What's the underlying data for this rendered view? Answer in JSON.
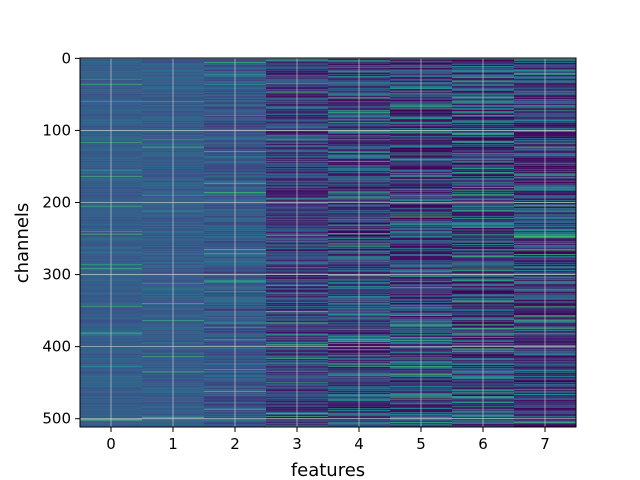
{
  "chart_data": {
    "type": "heatmap",
    "title": "",
    "xlabel": "features",
    "ylabel": "channels",
    "x_categories": [
      "0",
      "1",
      "2",
      "3",
      "4",
      "5",
      "6",
      "7"
    ],
    "y_ticks": [
      0,
      100,
      200,
      300,
      400,
      500
    ],
    "y_tick_labels": [
      "0",
      "100",
      "200",
      "300",
      "400",
      "500"
    ],
    "xlim": [
      -0.5,
      7.5
    ],
    "ylim": [
      511.5,
      -0.5
    ],
    "rows": 512,
    "grid": true,
    "colormap": "viridis",
    "colors": {
      "low": "#3b2a7a",
      "mid": "#3b5fa0",
      "high": "#35c6a0",
      "grid": "#d8d8d8"
    },
    "column_variance": [
      0.05,
      0.06,
      0.1,
      0.18,
      0.24,
      0.28,
      0.3,
      0.26
    ],
    "column_mean": [
      0.3,
      0.3,
      0.28,
      0.22,
      0.24,
      0.22,
      0.24,
      0.22
    ]
  }
}
